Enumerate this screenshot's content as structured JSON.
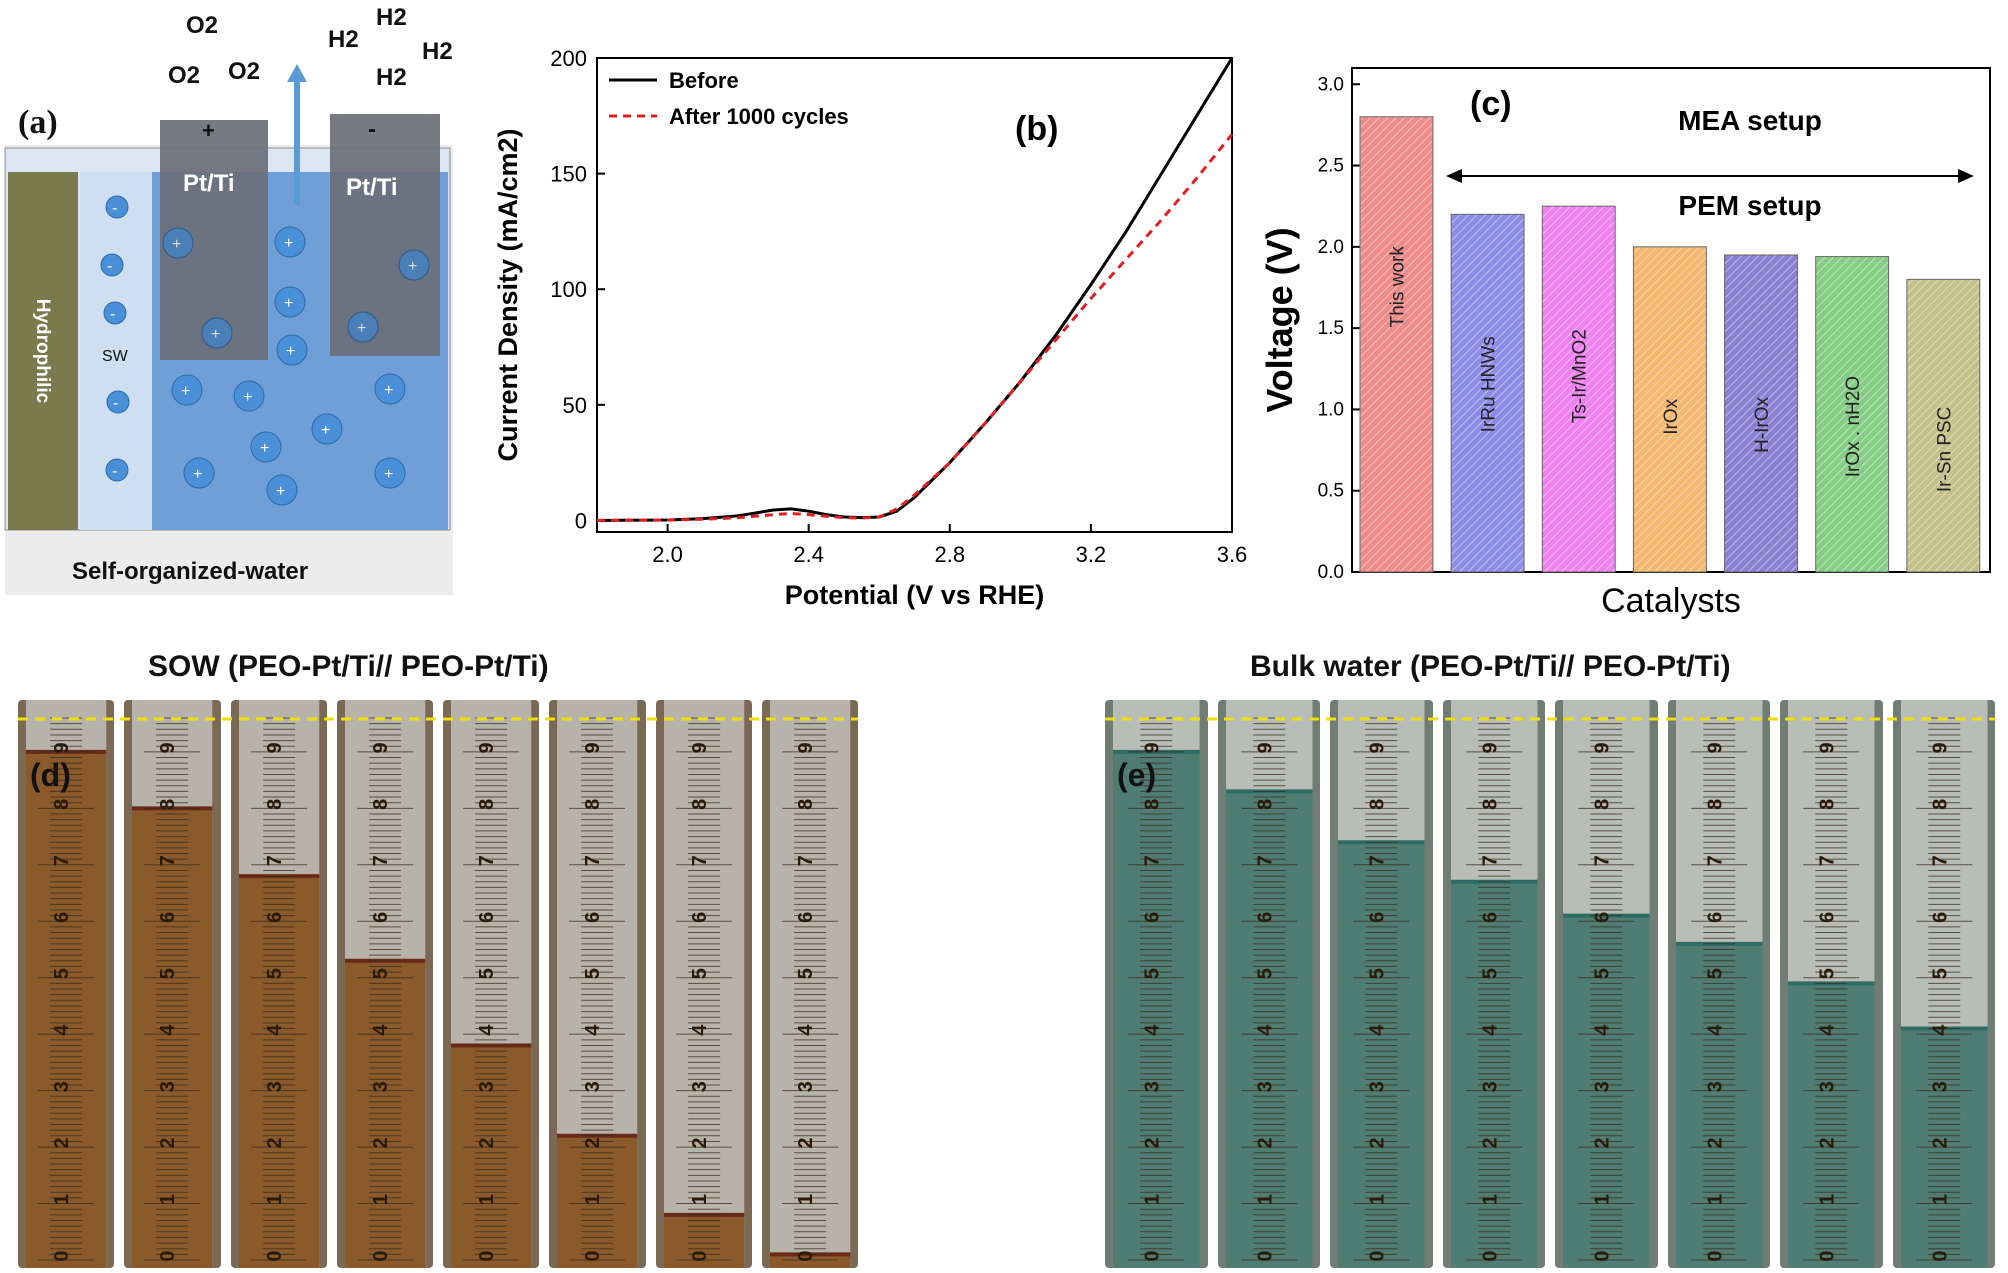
{
  "panel_a": {
    "tag": "(a)",
    "gas_left": [
      "O2",
      "O2",
      "O2"
    ],
    "gas_right": [
      "H2",
      "H2",
      "H2",
      "H2"
    ],
    "electrode_left_sign": "+",
    "electrode_right_sign": "-",
    "electrode_left_label": "Pt/Ti",
    "electrode_right_label": "Pt/Ti",
    "side_label": "Hydrophilic",
    "sw_label": "SW",
    "bottom_label": "Self-organized-water",
    "colors": {
      "water": "#6f9fd6",
      "membrane": "#7a7a4e",
      "electrode": "#6b6f78"
    }
  },
  "chart_data": [
    {
      "panel": "(b)",
      "type": "line",
      "xlabel": "Potential (V vs RHE)",
      "ylabel": "Current Density (mA/cm2)",
      "xlim": [
        1.8,
        3.6
      ],
      "ylim": [
        -5,
        200
      ],
      "xticks": [
        "2.0",
        "2.4",
        "2.8",
        "3.2",
        "3.6"
      ],
      "yticks": [
        "0",
        "50",
        "100",
        "150",
        "200"
      ],
      "legend_position": "top-left",
      "series": [
        {
          "name": "Before",
          "color": "#000000",
          "style": "solid",
          "x": [
            1.8,
            2.0,
            2.1,
            2.2,
            2.3,
            2.35,
            2.4,
            2.45,
            2.5,
            2.55,
            2.6,
            2.65,
            2.7,
            2.8,
            2.9,
            3.0,
            3.1,
            3.2,
            3.3,
            3.4,
            3.5,
            3.6
          ],
          "y": [
            0,
            0.2,
            0.8,
            2,
            4.5,
            5,
            4,
            2.5,
            1.5,
            1.2,
            1.5,
            4,
            10,
            25,
            42,
            60,
            80,
            102,
            125,
            150,
            175,
            200
          ]
        },
        {
          "name": "After 1000 cycles",
          "color": "#e02020",
          "style": "dashed",
          "x": [
            1.8,
            2.0,
            2.1,
            2.2,
            2.3,
            2.35,
            2.4,
            2.45,
            2.5,
            2.55,
            2.6,
            2.65,
            2.7,
            2.8,
            2.9,
            3.0,
            3.1,
            3.2,
            3.3,
            3.4,
            3.5,
            3.6
          ],
          "y": [
            0,
            0.2,
            0.5,
            1.2,
            2.5,
            3,
            2.5,
            1.8,
            1.2,
            1.0,
            1.5,
            5,
            11,
            25,
            42,
            60,
            78,
            96,
            113,
            130,
            148,
            167
          ]
        }
      ]
    },
    {
      "panel": "(c)",
      "type": "bar",
      "xlabel": "Catalysts",
      "ylabel": "Voltage (V)",
      "ylim": [
        0,
        3.1
      ],
      "yticks": [
        "0.0",
        "0.5",
        "1.0",
        "1.5",
        "2.0",
        "2.5",
        "3.0"
      ],
      "categories": [
        "This work",
        "IrRu HNWs",
        "Ts-Ir/MnO2",
        "IrOx",
        "H-IrOx",
        "IrOx . nH2O",
        "Ir-Sn PSC"
      ],
      "values": [
        2.8,
        2.2,
        2.25,
        2.0,
        1.95,
        1.94,
        1.8
      ],
      "colors": [
        "#ef8a8a",
        "#8c8ce8",
        "#ef80ef",
        "#f5b870",
        "#8a7fd0",
        "#85cc85",
        "#c4c08a"
      ],
      "annotations": {
        "top": "MEA setup",
        "bottom": "PEM setup"
      }
    }
  ],
  "panel_d": {
    "tag": "(d)",
    "title": "SOW (PEO-Pt/Ti// PEO-Pt/Ti)",
    "levels": [
      9,
      8,
      6.8,
      5.3,
      3.8,
      2.2,
      0.8,
      0.1
    ],
    "scale_numbers": [
      "9",
      "8",
      "7",
      "6",
      "5",
      "4",
      "3",
      "2",
      "1",
      "0"
    ]
  },
  "panel_e": {
    "tag": "(e)",
    "title": "Bulk water (PEO-Pt/Ti// PEO-Pt/Ti)",
    "levels": [
      9,
      8.3,
      7.4,
      6.7,
      6.1,
      5.6,
      4.9,
      4.1
    ],
    "scale_numbers": [
      "9",
      "8",
      "7",
      "6",
      "5",
      "4",
      "3",
      "2",
      "1",
      "0"
    ]
  }
}
